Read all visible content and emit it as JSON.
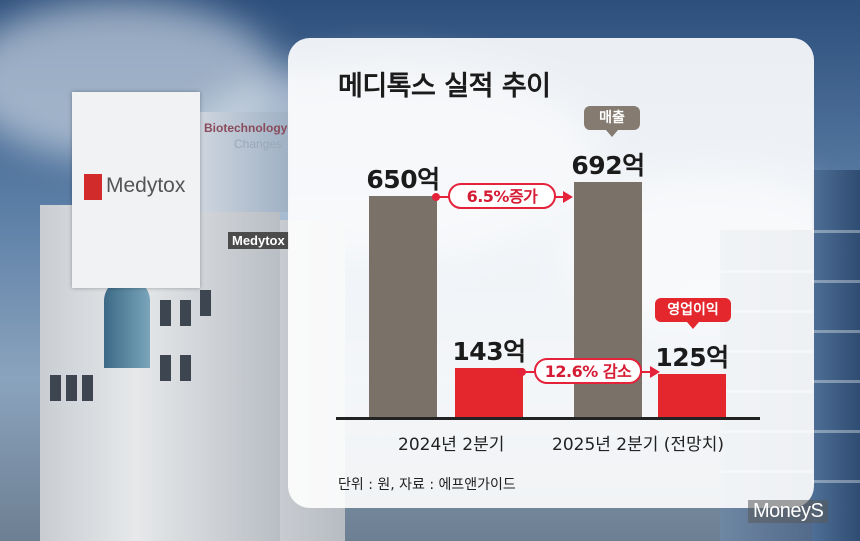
{
  "chart_data": {
    "type": "bar",
    "title": "메디톡스 실적 추이",
    "categories": [
      "2024년 2분기",
      "2025년 2분기 (전망치)"
    ],
    "series": [
      {
        "name": "매출",
        "values": [
          650,
          692
        ],
        "labels": [
          "650억",
          "692억"
        ],
        "color": "#7a7168"
      },
      {
        "name": "영업이익",
        "values": [
          143,
          125
        ],
        "labels": [
          "143억",
          "125억"
        ],
        "color": "#e4262d"
      }
    ],
    "changes": [
      "6.5%증가",
      "12.6% 감소"
    ],
    "unit_note": "단위 : 원, 자료 : 에프앤가이드",
    "ylim": [
      0,
      800
    ]
  },
  "background": {
    "billboard_logo": "Medytox",
    "billboard_side_line1": "Biotechnology",
    "billboard_side_line2": "Changes",
    "building_sign": "Medytox"
  },
  "watermark": "MoneyS"
}
